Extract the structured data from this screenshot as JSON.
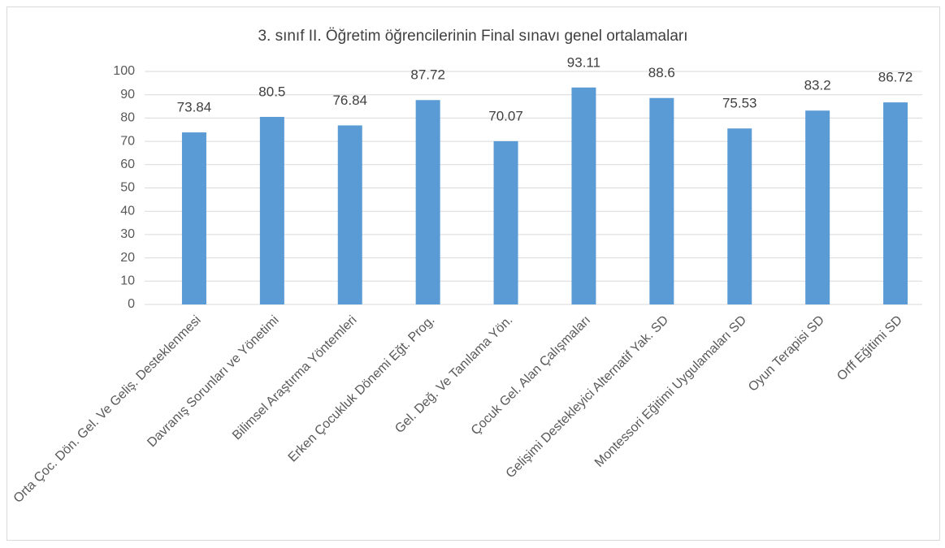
{
  "chart_data": {
    "type": "bar",
    "title": "3. sınıf II. Öğretim öğrencilerinin Final sınavı genel ortalamaları",
    "categories": [
      "Orta Çoc. Dön. Gel. Ve Geliş. Desteklenmesi",
      "Davranış Sorunları ve Yönetimi",
      "Bilimsel Araştırma Yöntemleri",
      "Erken Çocukluk Dönemi Eğt. Prog.",
      "Gel. Değ. Ve Tanılama Yön.",
      "Çocuk Gel. Alan Çalışmaları",
      "Gelişimi Destekleyici Alternatif Yak. SD",
      "Montessori Eğitimi Uygulamaları SD",
      "Oyun Terapisi SD",
      "Orff Eğitimi SD"
    ],
    "values": [
      73.84,
      80.5,
      76.84,
      87.72,
      70.07,
      93.11,
      88.6,
      75.53,
      83.2,
      86.72
    ],
    "color": "#5b9bd5",
    "ylim": [
      0,
      100
    ],
    "yticks": [
      0,
      10,
      20,
      30,
      40,
      50,
      60,
      70,
      80,
      90,
      100
    ],
    "grid": true
  }
}
